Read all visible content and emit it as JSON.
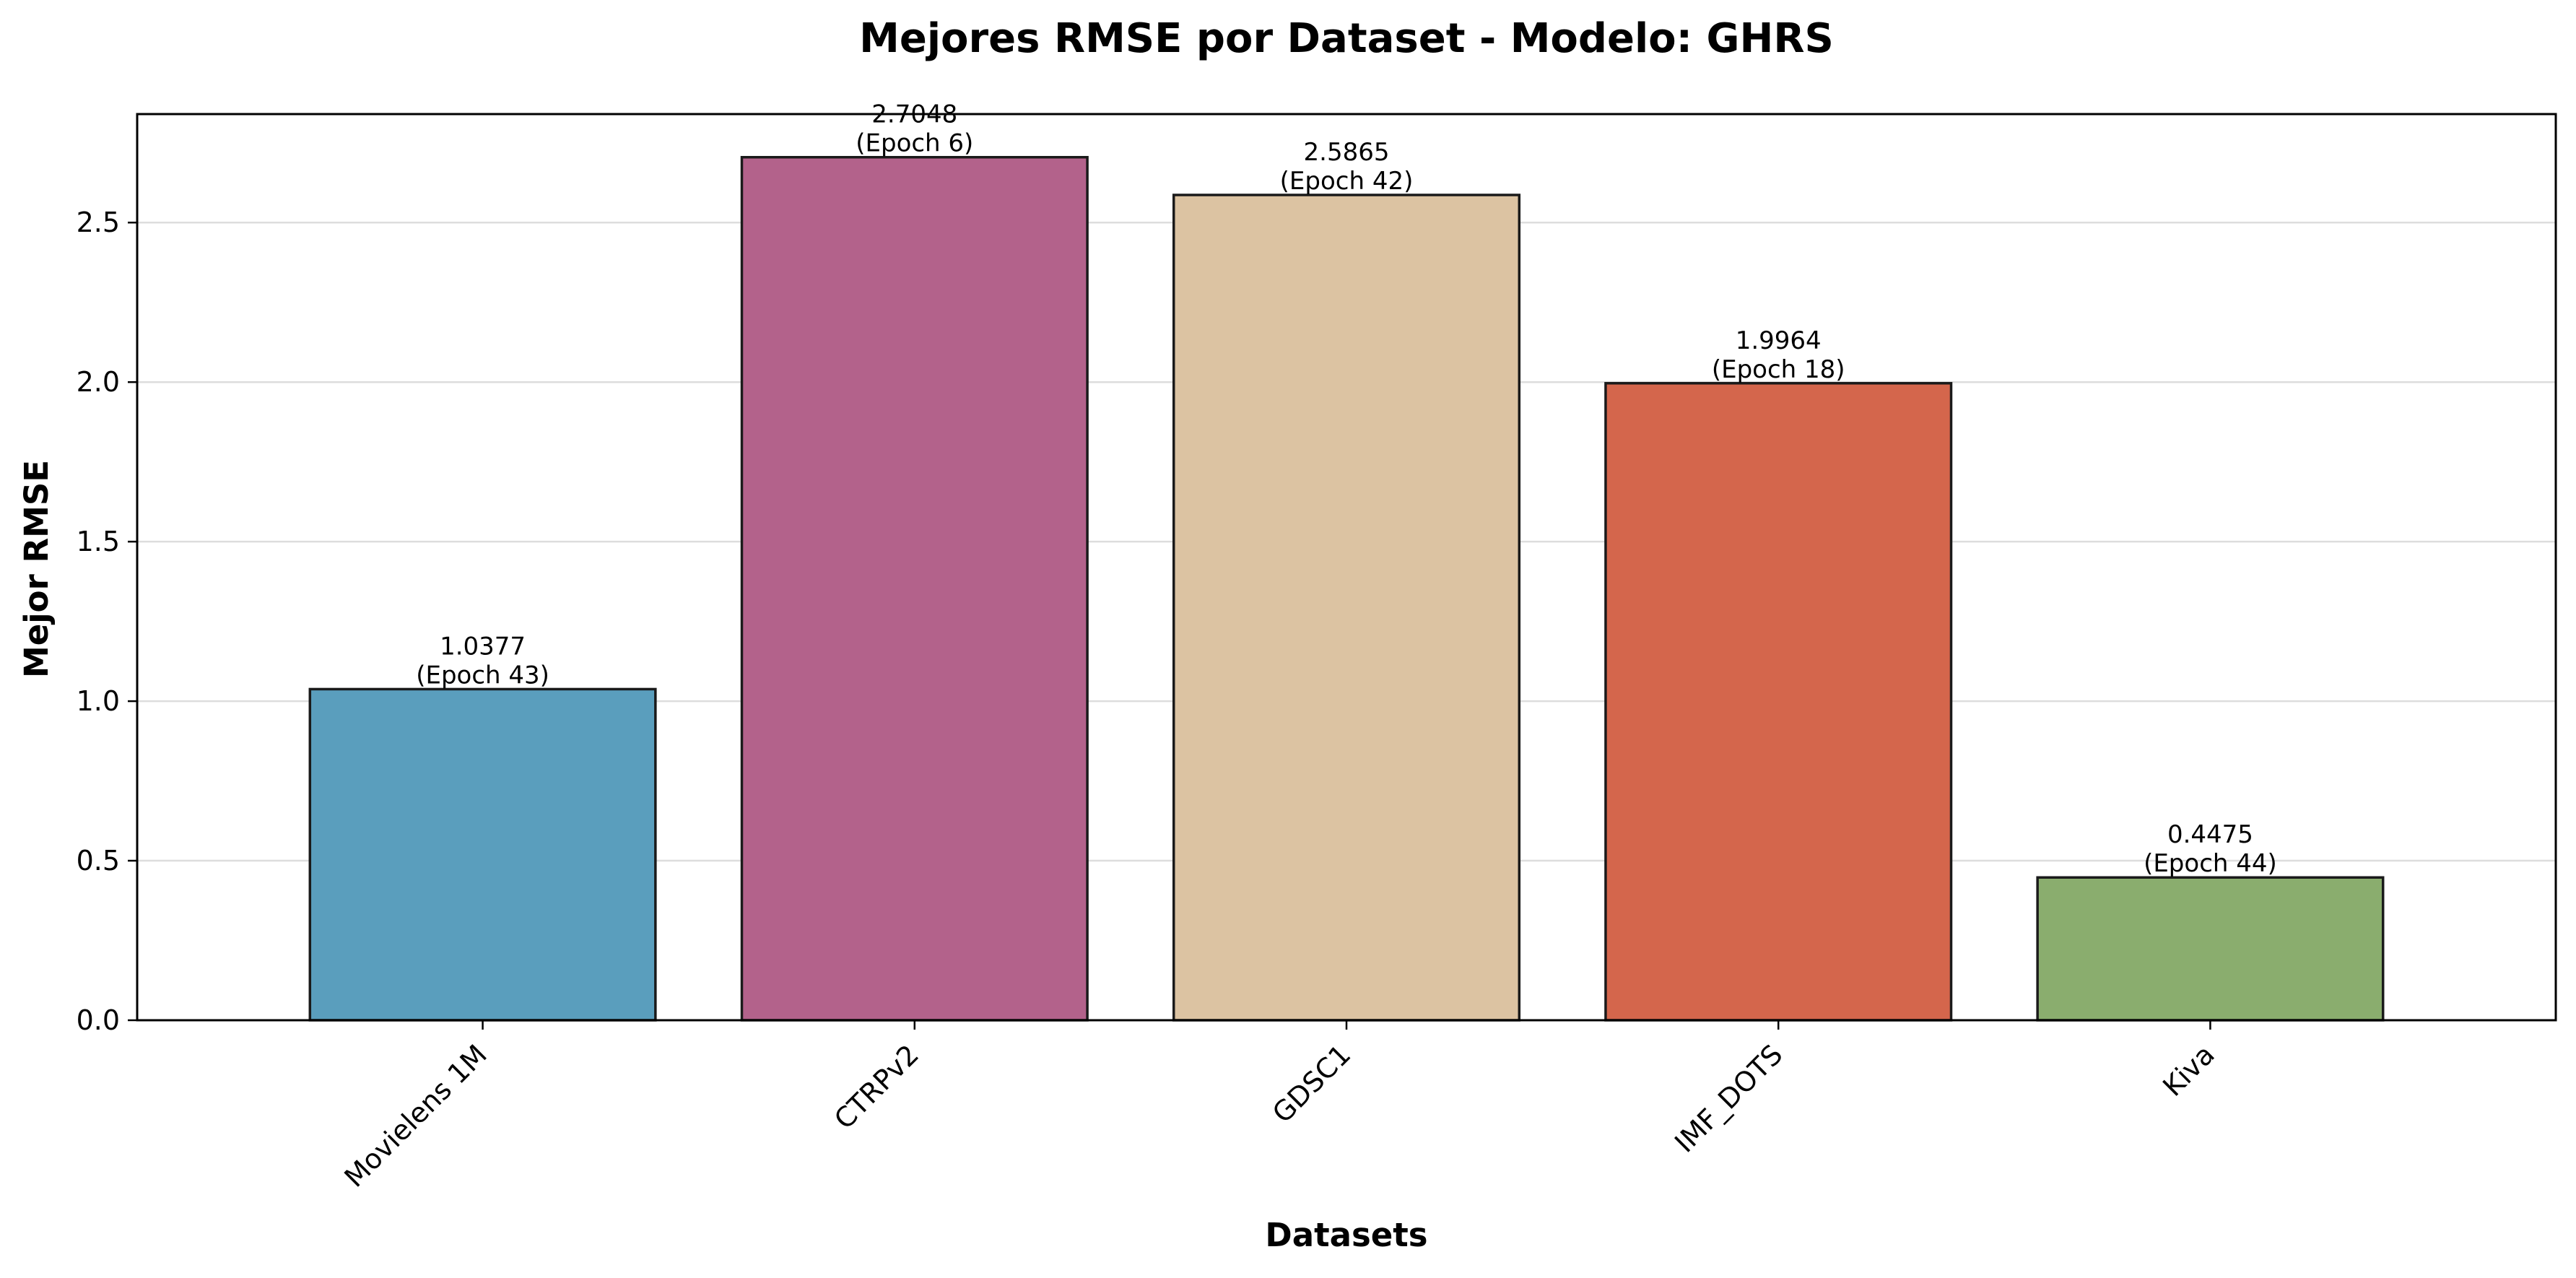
{
  "chart_data": {
    "type": "bar",
    "title": "Mejores RMSE por Dataset - Modelo: GHRS",
    "xlabel": "Datasets",
    "ylabel": "Mejor RMSE",
    "categories": [
      "Movielens 1M",
      "CTRPv2",
      "GDSC1",
      "IMF_DOTS",
      "Kiva"
    ],
    "values": [
      1.0377,
      2.7048,
      2.5865,
      1.9964,
      0.4475
    ],
    "data_labels": [
      [
        "1.0377",
        "(Epoch 43)"
      ],
      [
        "2.7048",
        "(Epoch 6)"
      ],
      [
        "2.5865",
        "(Epoch 42)"
      ],
      [
        "1.9964",
        "(Epoch 18)"
      ],
      [
        "0.4475",
        "(Epoch 44)"
      ]
    ],
    "bar_colors": [
      "#5a9ebd",
      "#b3628b",
      "#dcc3a2",
      "#d4664c",
      "#8aad6e"
    ],
    "bar_edge_color": "#1a1a1a",
    "yticks": [
      "0.0",
      "0.5",
      "1.0",
      "1.5",
      "2.0",
      "2.5"
    ],
    "ylim": [
      0,
      2.84
    ],
    "grid": "y",
    "legend": "none"
  }
}
